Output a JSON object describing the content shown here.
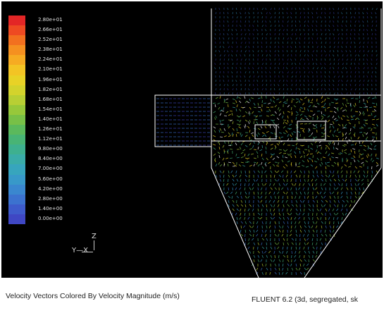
{
  "legend": {
    "entries": [
      {
        "label": "2.80e+01",
        "color": "#e32626"
      },
      {
        "label": "2.66e+01",
        "color": "#ee4a22"
      },
      {
        "label": "2.52e+01",
        "color": "#f2701f"
      },
      {
        "label": "2.38e+01",
        "color": "#f59020"
      },
      {
        "label": "2.24e+01",
        "color": "#f6ab22"
      },
      {
        "label": "2.10e+01",
        "color": "#f3c424"
      },
      {
        "label": "1.96e+01",
        "color": "#e8d226"
      },
      {
        "label": "1.82e+01",
        "color": "#d3d32c"
      },
      {
        "label": "1.68e+01",
        "color": "#b8cf34"
      },
      {
        "label": "1.54e+01",
        "color": "#97c83a"
      },
      {
        "label": "1.40e+01",
        "color": "#78c047"
      },
      {
        "label": "1.26e+01",
        "color": "#5bb95c"
      },
      {
        "label": "1.12e+01",
        "color": "#48b475"
      },
      {
        "label": "9.80e+00",
        "color": "#3eb08f"
      },
      {
        "label": "8.40e+00",
        "color": "#3aaca8"
      },
      {
        "label": "7.00e+00",
        "color": "#37a5bd"
      },
      {
        "label": "5.60e+00",
        "color": "#3899c9"
      },
      {
        "label": "4.20e+00",
        "color": "#3a87cf"
      },
      {
        "label": "2.80e+00",
        "color": "#3c72cf"
      },
      {
        "label": "1.40e+00",
        "color": "#3e5bcb"
      },
      {
        "label": "0.00e+00",
        "color": "#3f47c4"
      }
    ]
  },
  "axes": {
    "z": "Z",
    "yx": "Y—X"
  },
  "caption": {
    "left": "Velocity Vectors Colored By Velocity Magnitude (m/s)",
    "right": "FLUENT 6.2 (3d, segregated, sk"
  }
}
